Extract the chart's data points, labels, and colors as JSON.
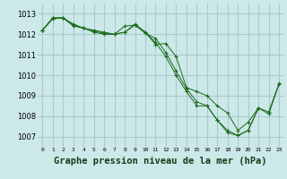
{
  "background_color": "#cce8e8",
  "grid_color": "#aacccc",
  "line_color": "#1a6b1a",
  "marker_color": "#1a6b1a",
  "xlabel": "Graphe pression niveau de la mer (hPa)",
  "xlabel_fontsize": 7.5,
  "ylim": [
    1006.5,
    1013.5
  ],
  "xlim": [
    -0.5,
    23.5
  ],
  "yticks": [
    1007,
    1008,
    1009,
    1010,
    1011,
    1012,
    1013
  ],
  "xticks": [
    0,
    1,
    2,
    3,
    4,
    5,
    6,
    7,
    8,
    9,
    10,
    11,
    12,
    13,
    14,
    15,
    16,
    17,
    18,
    19,
    20,
    21,
    22,
    23
  ],
  "series1": {
    "x": [
      0,
      1,
      2,
      3,
      4,
      5,
      6,
      7,
      8,
      9,
      10,
      11,
      12,
      13,
      14,
      15,
      16,
      17,
      18,
      19,
      20,
      21,
      22,
      23
    ],
    "y": [
      1012.2,
      1012.8,
      1012.8,
      1012.5,
      1012.3,
      1012.2,
      1012.1,
      1012.0,
      1012.1,
      1012.5,
      1012.1,
      1011.6,
      1010.9,
      1010.0,
      1009.2,
      1008.5,
      1008.5,
      1007.8,
      1007.3,
      1007.05,
      1007.3,
      1008.4,
      1008.2,
      1009.6
    ]
  },
  "series2": {
    "x": [
      0,
      1,
      2,
      3,
      4,
      5,
      6,
      7,
      8,
      9,
      10,
      11,
      12,
      13,
      14,
      15,
      16,
      17,
      18,
      19,
      20,
      21,
      22,
      23
    ],
    "y": [
      1012.2,
      1012.8,
      1012.8,
      1012.4,
      1012.3,
      1012.15,
      1012.05,
      1012.0,
      1012.4,
      1012.45,
      1012.1,
      1011.5,
      1011.55,
      1010.9,
      1009.4,
      1009.2,
      1009.0,
      1008.5,
      1008.15,
      1007.3,
      1007.7,
      1008.4,
      null,
      null
    ]
  },
  "series3": {
    "x": [
      0,
      1,
      2,
      3,
      4,
      5,
      6,
      7,
      8,
      9,
      10,
      11,
      12,
      13,
      14,
      15,
      16,
      17,
      18,
      19,
      20,
      21,
      22,
      23
    ],
    "y": [
      1012.2,
      1012.75,
      1012.8,
      1012.45,
      1012.3,
      1012.1,
      1012.0,
      1012.0,
      1012.1,
      1012.45,
      1012.05,
      1011.8,
      1011.1,
      1010.2,
      1009.35,
      1008.7,
      1008.5,
      1007.8,
      1007.2,
      1007.05,
      1007.3,
      1008.4,
      1008.1,
      1009.55
    ]
  }
}
